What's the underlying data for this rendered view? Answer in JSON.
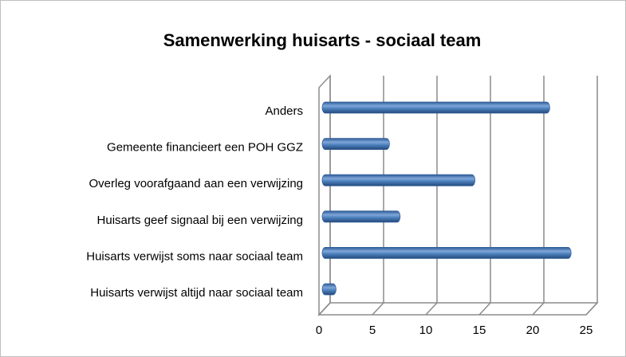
{
  "chart_data": {
    "type": "bar",
    "orientation": "horizontal",
    "title": "Samenwerking huisarts - sociaal team",
    "categories": [
      "Anders",
      "Gemeente financieert een POH GGZ",
      "Overleg voorafgaand aan een verwijzing",
      "Huisarts geef signaal bij een verwijzing",
      "Huisarts verwijst soms naar sociaal team",
      "Huisarts verwijst altijd naar sociaal team"
    ],
    "values": [
      21,
      6,
      14,
      7,
      23,
      1
    ],
    "color": "#4a7ebb",
    "xlim": [
      0,
      25
    ],
    "xticks": [
      0,
      5,
      10,
      15,
      20,
      25
    ],
    "grid": true
  }
}
